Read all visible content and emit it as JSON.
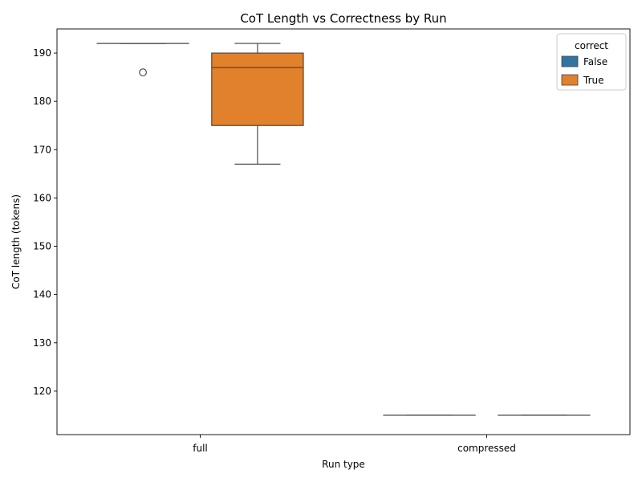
{
  "chart_data": {
    "type": "box",
    "title": "CoT Length vs Correctness by Run",
    "xlabel": "Run type",
    "ylabel": "CoT length (tokens)",
    "categories": [
      "full",
      "compressed"
    ],
    "ylim": [
      111,
      195
    ],
    "yticks": [
      120,
      130,
      140,
      150,
      160,
      170,
      180,
      190
    ],
    "legend": {
      "title": "correct",
      "placement": "top-right",
      "entries": [
        "False",
        "True"
      ]
    },
    "series": [
      {
        "name": "False",
        "color": "#3274a1",
        "boxes": [
          {
            "category": "full",
            "q1": 192,
            "median": 192,
            "q3": 192,
            "whisker_low": 192,
            "whisker_high": 192,
            "outliers": [
              186
            ]
          },
          {
            "category": "compressed",
            "q1": 115,
            "median": 115,
            "q3": 115,
            "whisker_low": 115,
            "whisker_high": 115,
            "outliers": []
          }
        ]
      },
      {
        "name": "True",
        "color": "#e1812c",
        "boxes": [
          {
            "category": "full",
            "q1": 175,
            "median": 187,
            "q3": 190,
            "whisker_low": 167,
            "whisker_high": 192,
            "outliers": []
          },
          {
            "category": "compressed",
            "q1": 115,
            "median": 115,
            "q3": 115,
            "whisker_low": 115,
            "whisker_high": 115,
            "outliers": []
          }
        ]
      }
    ]
  }
}
